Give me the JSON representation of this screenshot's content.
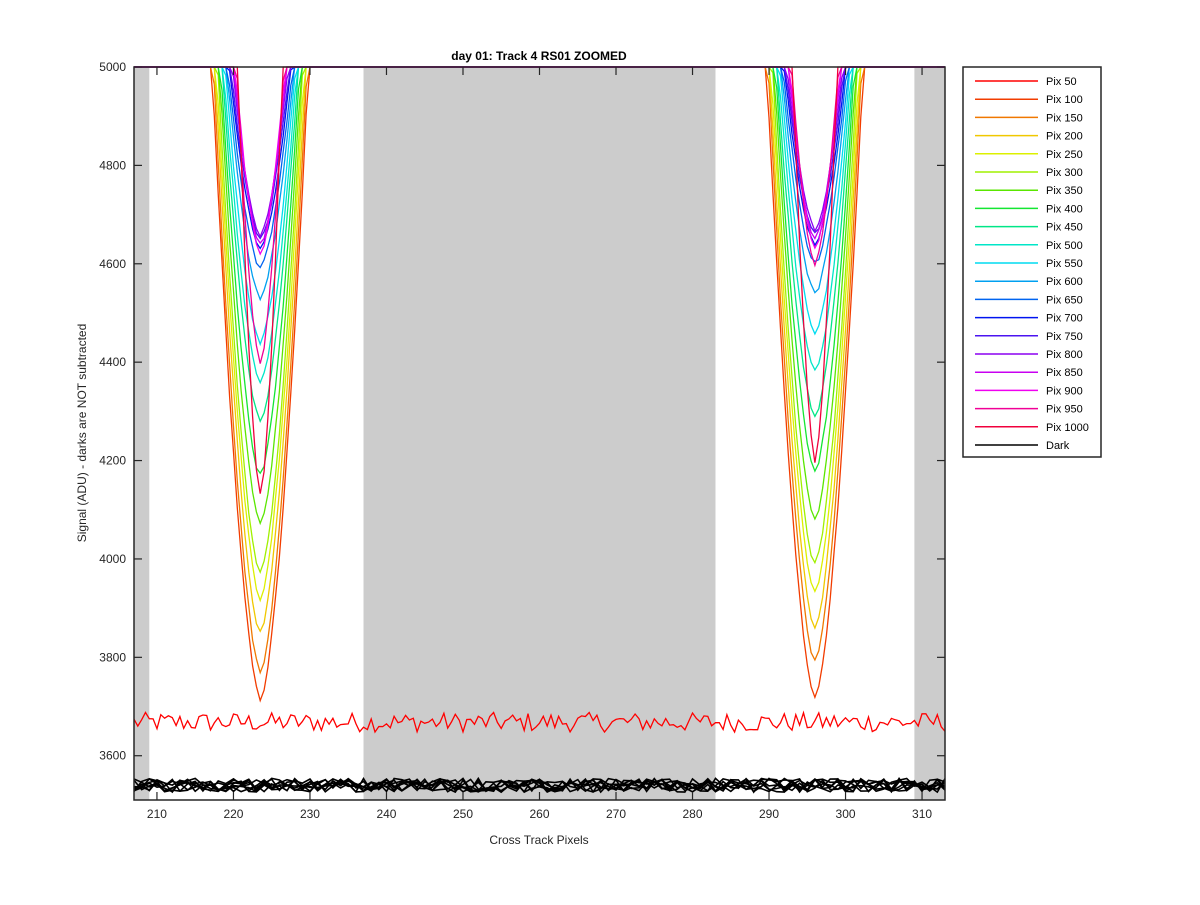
{
  "chart_data": {
    "type": "line",
    "title": "day 01: Track 4  RS01 ZOOMED",
    "xlabel": "Cross Track Pixels",
    "ylabel": "Signal (ADU) - darks are NOT subtracted",
    "xlim": [
      207,
      313
    ],
    "ylim": [
      3510,
      5000
    ],
    "x_ticks": [
      210,
      220,
      230,
      240,
      250,
      260,
      270,
      280,
      290,
      300,
      310
    ],
    "y_ticks": [
      3600,
      3800,
      4000,
      4200,
      4400,
      4600,
      4800,
      5000
    ],
    "shaded_regions": [
      [
        207,
        209
      ],
      [
        237,
        283
      ],
      [
        309,
        313
      ]
    ],
    "well_centers": [
      223.5,
      296
    ],
    "series": [
      {
        "name": "Pix 50",
        "color": "#ff0000",
        "min1": 3680,
        "min2": 3690
      },
      {
        "name": "Pix 100",
        "color": "#f23c00",
        "min1": 3715,
        "min2": 3720
      },
      {
        "name": "Pix 150",
        "color": "#f07800",
        "min1": 3770,
        "min2": 3790
      },
      {
        "name": "Pix 200",
        "color": "#f0c800",
        "min1": 3850,
        "min2": 3860
      },
      {
        "name": "Pix 250",
        "color": "#dcf000",
        "min1": 3920,
        "min2": 3930
      },
      {
        "name": "Pix 300",
        "color": "#a0f000",
        "min1": 3970,
        "min2": 3990
      },
      {
        "name": "Pix 350",
        "color": "#5ae600",
        "min1": 4070,
        "min2": 4080
      },
      {
        "name": "Pix 400",
        "color": "#14e632",
        "min1": 4170,
        "min2": 4180
      },
      {
        "name": "Pix 450",
        "color": "#00e687",
        "min1": 4280,
        "min2": 4290
      },
      {
        "name": "Pix 500",
        "color": "#00e6c8",
        "min1": 4360,
        "min2": 4380
      },
      {
        "name": "Pix 550",
        "color": "#00dcf0",
        "min1": 4440,
        "min2": 4460
      },
      {
        "name": "Pix 600",
        "color": "#00a0f0",
        "min1": 4530,
        "min2": 4540
      },
      {
        "name": "Pix 650",
        "color": "#0064f0",
        "min1": 4590,
        "min2": 4600
      },
      {
        "name": "Pix 700",
        "color": "#0014f0",
        "min1": 4630,
        "min2": 4640
      },
      {
        "name": "Pix 750",
        "color": "#4b14f0",
        "min1": 4650,
        "min2": 4660
      },
      {
        "name": "Pix 800",
        "color": "#8c00f0",
        "min1": 4660,
        "min2": 4670
      },
      {
        "name": "Pix 850",
        "color": "#c800f0",
        "min1": 4640,
        "min2": 4650
      },
      {
        "name": "Pix 900",
        "color": "#f000f0",
        "min1": 4620,
        "min2": 4630
      },
      {
        "name": "Pix 950",
        "color": "#f00096",
        "min1": 4400,
        "min2": 4600
      },
      {
        "name": "Pix 1000",
        "color": "#f0003c",
        "min1": 4130,
        "min2": 4200
      },
      {
        "name": "Dark",
        "color": "#000000",
        "level": 3540
      }
    ]
  }
}
